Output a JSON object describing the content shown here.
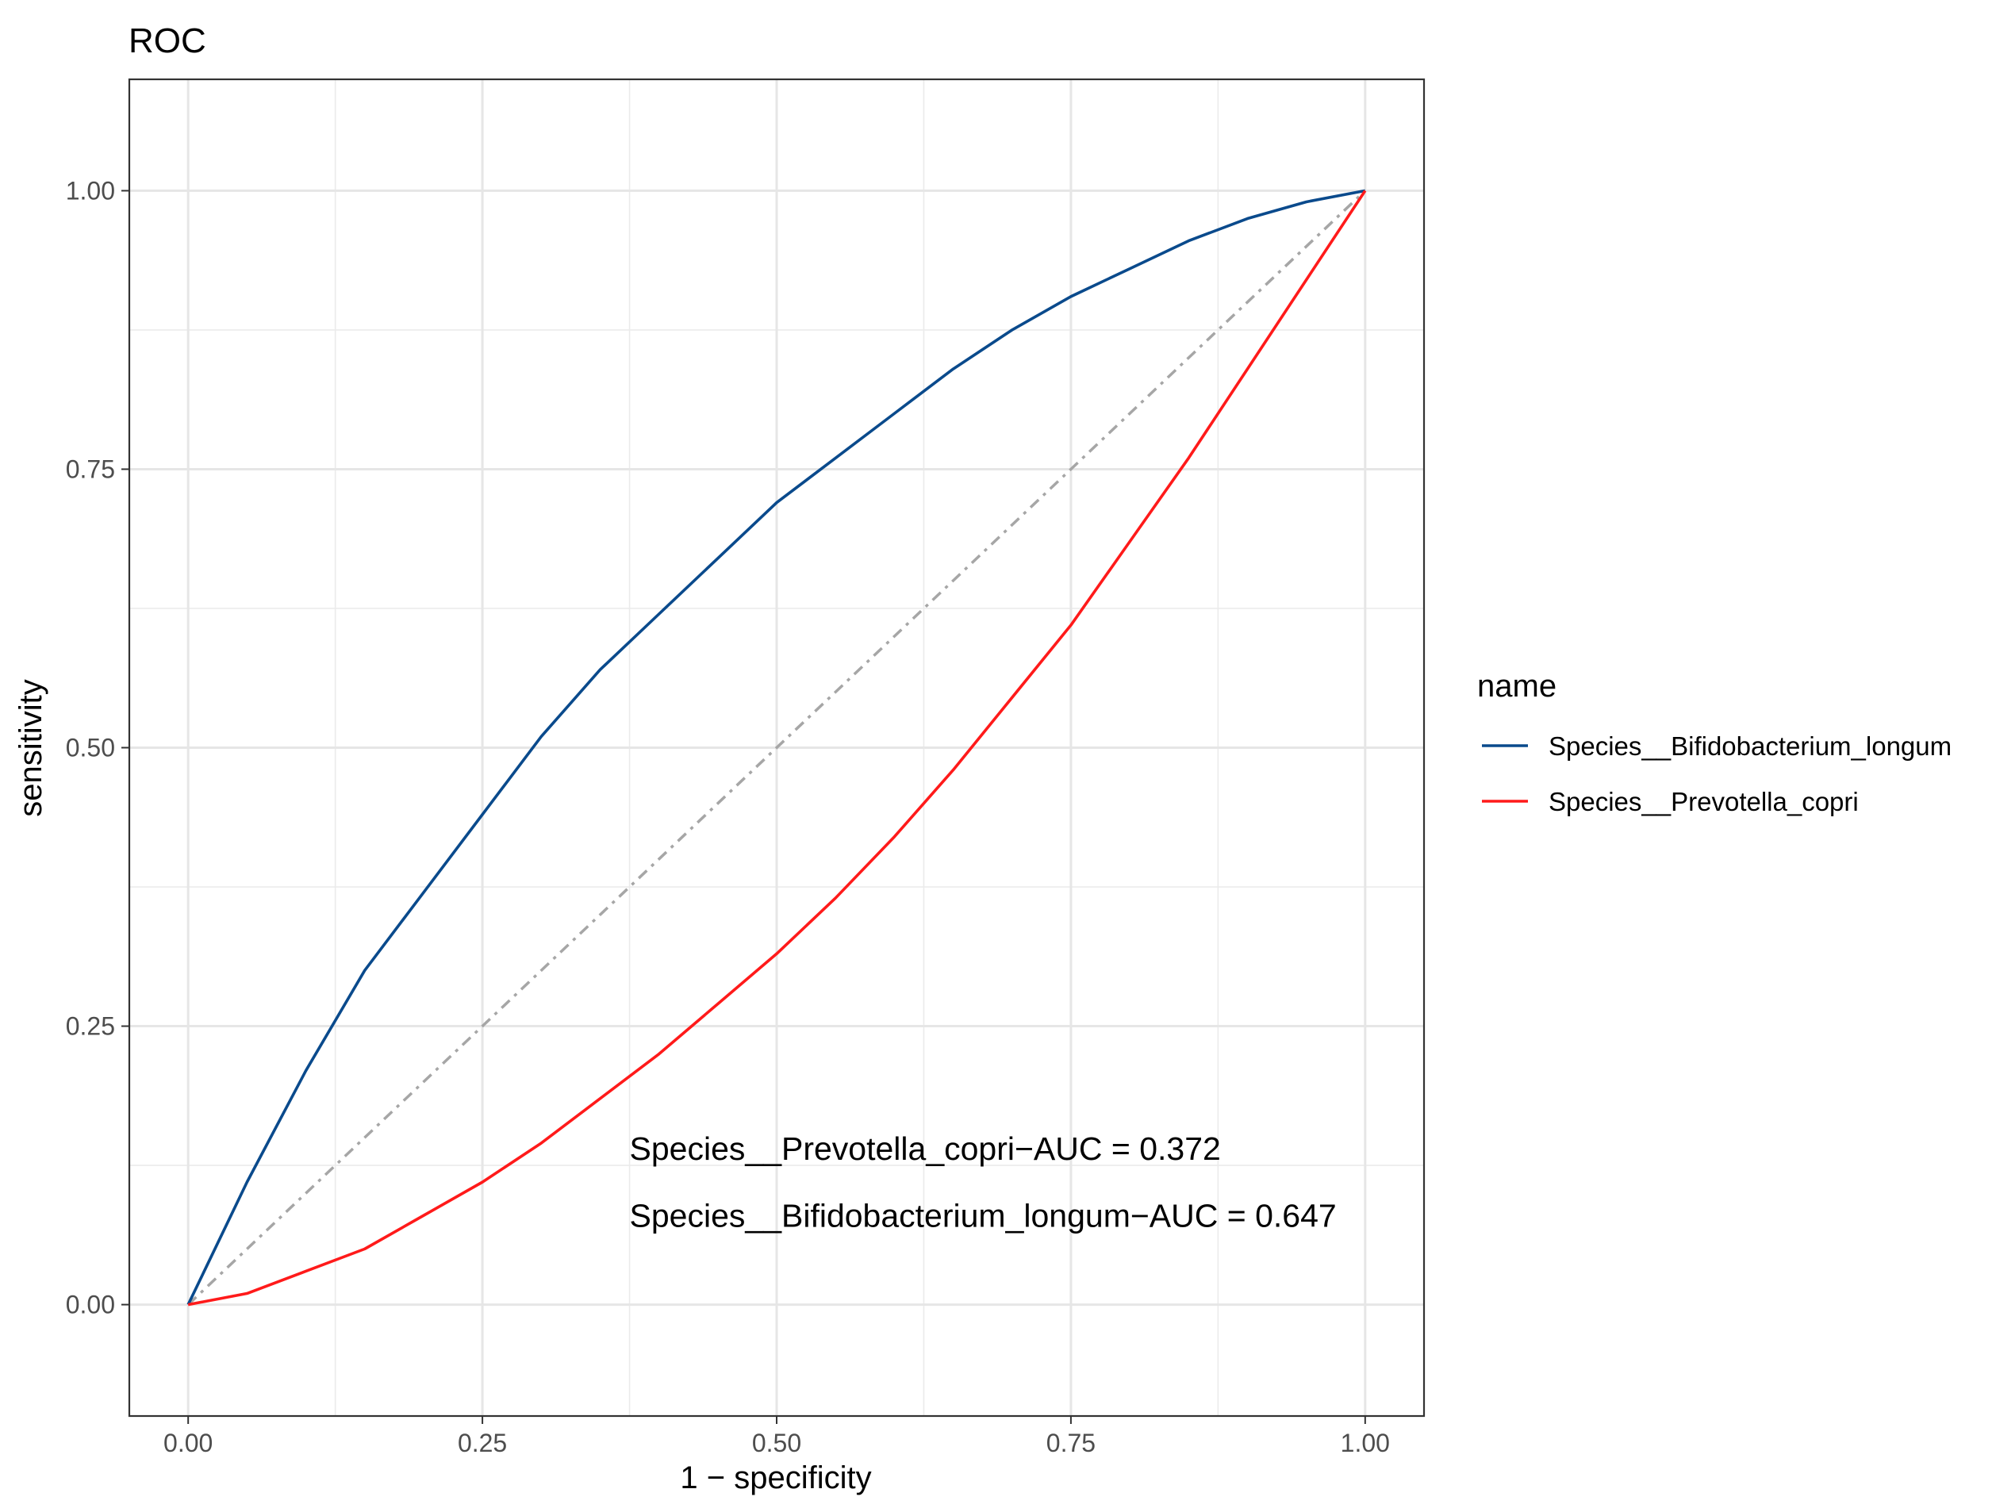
{
  "chart_data": {
    "type": "line",
    "title": "ROC",
    "xlabel": "1 − specificity",
    "ylabel": "sensitivity",
    "xlim": [
      -0.05,
      1.05
    ],
    "ylim": [
      -0.1,
      1.1
    ],
    "x_ticks": [
      "0.00",
      "0.25",
      "0.50",
      "0.75",
      "1.00"
    ],
    "y_ticks": [
      "0.00",
      "0.25",
      "0.50",
      "0.75",
      "1.00"
    ],
    "grid": true,
    "legend": {
      "title": "name",
      "placement": "right"
    },
    "series": [
      {
        "name": "Species__Bifidobacterium_longum",
        "color": "#0a4a8c",
        "x": [
          0.0,
          0.05,
          0.1,
          0.15,
          0.2,
          0.25,
          0.3,
          0.35,
          0.4,
          0.45,
          0.5,
          0.55,
          0.6,
          0.65,
          0.7,
          0.75,
          0.8,
          0.85,
          0.9,
          0.95,
          1.0
        ],
        "y": [
          0.0,
          0.11,
          0.21,
          0.3,
          0.37,
          0.44,
          0.51,
          0.57,
          0.62,
          0.67,
          0.72,
          0.76,
          0.8,
          0.84,
          0.875,
          0.905,
          0.93,
          0.955,
          0.975,
          0.99,
          1.0
        ]
      },
      {
        "name": "Species__Prevotella_copri",
        "color": "#ff1a1a",
        "x": [
          0.0,
          0.05,
          0.1,
          0.15,
          0.2,
          0.25,
          0.3,
          0.35,
          0.4,
          0.45,
          0.5,
          0.55,
          0.6,
          0.65,
          0.7,
          0.75,
          0.8,
          0.85,
          0.9,
          0.95,
          1.0
        ],
        "y": [
          0.0,
          0.01,
          0.03,
          0.05,
          0.08,
          0.11,
          0.145,
          0.185,
          0.225,
          0.27,
          0.315,
          0.365,
          0.42,
          0.48,
          0.545,
          0.61,
          0.685,
          0.76,
          0.84,
          0.92,
          1.0
        ]
      }
    ],
    "reference_line": {
      "x": [
        0,
        1
      ],
      "y": [
        0,
        1
      ],
      "color": "#a6a6a6",
      "style": "dash-dot"
    },
    "annotations": [
      {
        "text": "Species__Prevotella_copri−AUC =  0.372",
        "x": 0.375,
        "y": 0.14
      },
      {
        "text": "Species__Bifidobacterium_longum−AUC =  0.647",
        "x": 0.375,
        "y": 0.08
      }
    ]
  }
}
